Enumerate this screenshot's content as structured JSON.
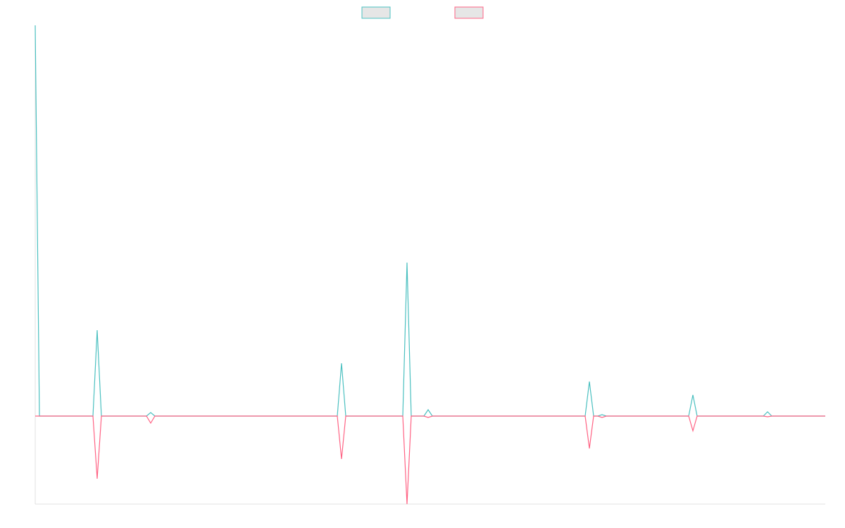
{
  "chart_data": {
    "type": "line",
    "x": [
      0,
      6,
      82,
      88,
      94,
      158,
      164,
      170,
      429,
      435,
      441,
      522,
      528,
      534,
      552,
      558,
      564,
      781,
      787,
      793,
      799,
      805,
      811,
      928,
      934,
      940,
      1034,
      1040,
      1046,
      1122
    ],
    "series": [
      {
        "color": "#4bc0c0",
        "values": [
          555,
          0,
          0,
          122,
          0,
          0,
          5,
          0,
          0,
          75,
          0,
          0,
          218,
          0,
          0,
          9,
          0,
          0,
          49,
          0,
          0,
          2,
          0,
          0,
          30,
          0,
          0,
          6,
          0,
          0
        ]
      },
      {
        "color": "#ff6384",
        "values": [
          0,
          0,
          0,
          -89,
          0,
          0,
          -10,
          0,
          0,
          -61,
          0,
          0,
          -125,
          0,
          0,
          -2,
          0,
          0,
          -46,
          0,
          0,
          -2,
          0,
          0,
          -21,
          0,
          0,
          -1,
          0,
          0
        ]
      }
    ],
    "xlim": [
      0,
      1122
    ],
    "ylim": [
      -125,
      555
    ],
    "legend": "top"
  }
}
